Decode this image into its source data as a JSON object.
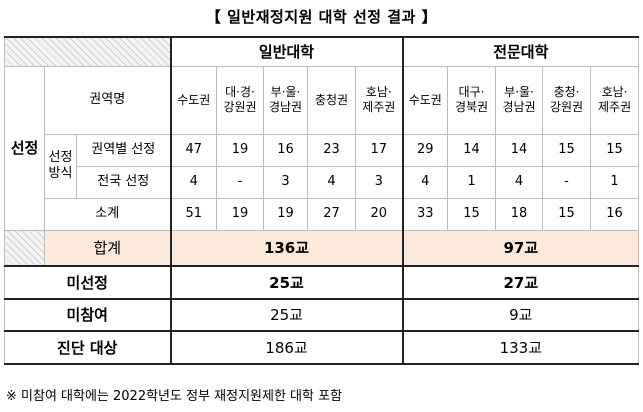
{
  "title": "【 일반재정지원 대학 선정 결과 】",
  "header": {
    "general": "일반대학",
    "junior": "전문대학"
  },
  "labels": {
    "selection": "선정",
    "method_line1": "선정",
    "method_line2": "방식",
    "region_name": "권역명",
    "regional": "권역별 선정",
    "national": "전국 선정",
    "subtotal": "소계",
    "total": "합계",
    "not_selected": "미선정",
    "not_participating": "미참여",
    "diagnosis_target": "진단 대상"
  },
  "general_regions": [
    {
      "l1": "수도권",
      "l2": ""
    },
    {
      "l1": "대·경·",
      "l2": "강원권"
    },
    {
      "l1": "부·울·",
      "l2": "경남권"
    },
    {
      "l1": "충청권",
      "l2": ""
    },
    {
      "l1": "호남·",
      "l2": "제주권"
    }
  ],
  "junior_regions": [
    {
      "l1": "수도권",
      "l2": ""
    },
    {
      "l1": "대구·",
      "l2": "경북권"
    },
    {
      "l1": "부·울·",
      "l2": "경남권"
    },
    {
      "l1": "충청·",
      "l2": "강원권"
    },
    {
      "l1": "호남·",
      "l2": "제주권"
    }
  ],
  "general_regional": [
    "47",
    "19",
    "16",
    "23",
    "17"
  ],
  "junior_regional": [
    "29",
    "14",
    "14",
    "15",
    "15"
  ],
  "general_national": [
    "4",
    "-",
    "3",
    "4",
    "3"
  ],
  "junior_national": [
    "4",
    "1",
    "4",
    "-",
    "1"
  ],
  "general_subtotal": [
    "51",
    "19",
    "19",
    "27",
    "20"
  ],
  "junior_subtotal": [
    "33",
    "15",
    "18",
    "15",
    "16"
  ],
  "totals": {
    "general_total": "136교",
    "junior_total": "97교",
    "general_not_selected": "25교",
    "junior_not_selected": "27교",
    "general_not_participating": "25교",
    "junior_not_participating": "9교",
    "general_diagnosis": "186교",
    "junior_diagnosis": "133교"
  },
  "footnote": "※ 미참여 대학에는 2022학년도 정부 재정지원제한 대학 포함"
}
